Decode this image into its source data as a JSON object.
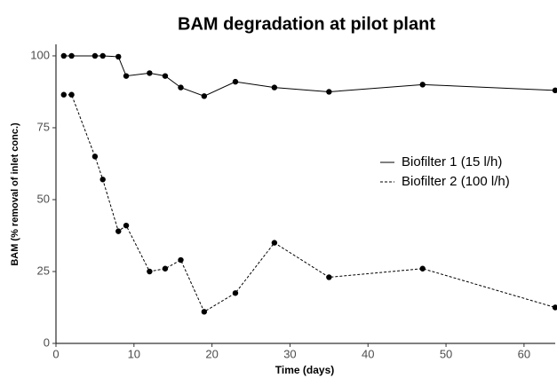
{
  "chart_data": {
    "type": "line",
    "title": "BAM degradation at pilot plant",
    "x_label": "Time (days)",
    "y_label": "BAM (% removal of inlet conc.)",
    "x": [
      1,
      2,
      5,
      6,
      8,
      9,
      12,
      14,
      16,
      19,
      23,
      28,
      35,
      47,
      64
    ],
    "series": [
      {
        "name": "Biofilter 1 (15 l/h)",
        "color": "#000000",
        "line_style": "solid",
        "values": [
          100,
          100,
          100,
          100,
          99.7,
          93,
          94,
          93,
          89,
          86,
          91,
          89,
          87.5,
          90,
          88
        ]
      },
      {
        "name": "Biofilter 2 (100 l/h)",
        "color": "#000000",
        "line_style": "dashed",
        "values": [
          86.5,
          86.5,
          65,
          57,
          39,
          41,
          25,
          26,
          29,
          11,
          17.5,
          35,
          23,
          26,
          12.5
        ]
      }
    ],
    "xlim": [
      0,
      64
    ],
    "ylim": [
      0,
      104
    ],
    "xticks": [
      0,
      10,
      20,
      30,
      40,
      50,
      60
    ],
    "yticks": [
      0,
      25,
      50,
      75,
      100
    ],
    "grid": false,
    "legend_position": "right"
  }
}
